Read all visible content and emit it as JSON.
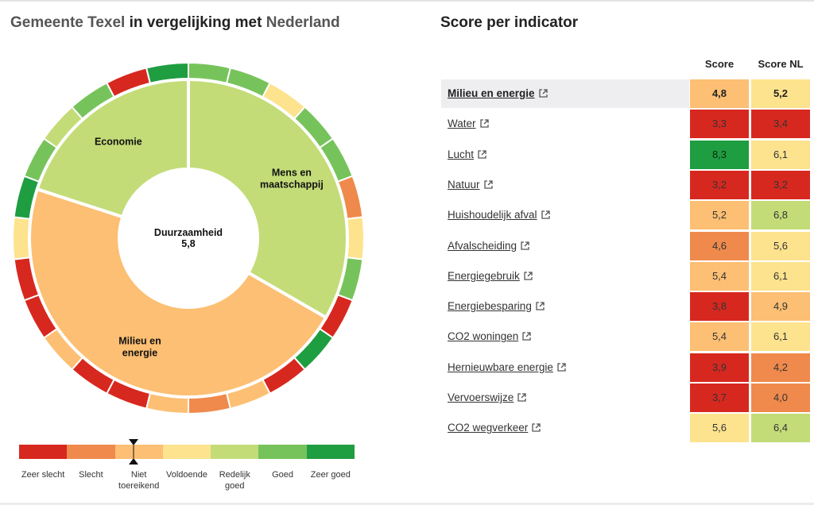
{
  "header": {
    "title_prefix": "Gemeente Texel",
    "title_middle": " in vergelijking met ",
    "title_suffix": "Nederland",
    "right_title": "Score per indicator"
  },
  "colors": {
    "zeer_slecht": "#d7281f",
    "slecht": "#ef8a4c",
    "niet_toereikend": "#fcbf73",
    "voldoende": "#fde38e",
    "redelijk_goed": "#c3dc78",
    "goed": "#77c35b",
    "zeer_goed": "#1f9d41"
  },
  "chart_data": {
    "type": "sunburst",
    "center": {
      "title": "Duurzaamheid",
      "value": "5,8"
    },
    "inner": [
      {
        "name": "Mens en maatschappij",
        "color": "redelijk_goed",
        "lines": [
          "Mens en",
          "maatschappij"
        ]
      },
      {
        "name": "Milieu en energie",
        "color": "niet_toereikend",
        "lines": [
          "Milieu en",
          "energie"
        ],
        "value": "4,8"
      },
      {
        "name": "Economie",
        "color": "redelijk_goed",
        "lines": [
          "Economie"
        ]
      }
    ],
    "outer_colors": [
      "goed",
      "goed",
      "voldoende",
      "goed",
      "goed",
      "slecht",
      "voldoende",
      "goed",
      "zeer_slecht",
      "zeer_goed",
      "zeer_slecht",
      "niet_toereikend",
      "slecht",
      "niet_toereikend",
      "zeer_slecht",
      "zeer_slecht",
      "niet_toereikend",
      "zeer_slecht",
      "zeer_slecht",
      "voldoende",
      "zeer_goed",
      "goed",
      "redelijk_goed",
      "goed",
      "zeer_slecht",
      "zeer_goed"
    ]
  },
  "legend": {
    "labels": [
      "Zeer slecht",
      "Slecht",
      "Niet toereikend",
      "Voldoende",
      "Redelijk goed",
      "Goed",
      "Zeer goed"
    ],
    "marker_score": 4.8
  },
  "table": {
    "col_score": "Score",
    "col_score_nl": "Score NL",
    "rows": [
      {
        "label": "Milieu en energie",
        "score": "4,8",
        "score_nl": "5,2",
        "score_color": "niet_toereikend",
        "nl_color": "voldoende",
        "bold": true
      },
      {
        "label": "Water",
        "score": "3,3",
        "score_nl": "3,4",
        "score_color": "zeer_slecht",
        "nl_color": "zeer_slecht"
      },
      {
        "label": "Lucht",
        "score": "8,3",
        "score_nl": "6,1",
        "score_color": "zeer_goed",
        "nl_color": "voldoende"
      },
      {
        "label": "Natuur",
        "score": "3,2",
        "score_nl": "3,2",
        "score_color": "zeer_slecht",
        "nl_color": "zeer_slecht"
      },
      {
        "label": "Huishoudelijk afval",
        "score": "5,2",
        "score_nl": "6,8",
        "score_color": "niet_toereikend",
        "nl_color": "redelijk_goed"
      },
      {
        "label": "Afvalscheiding",
        "score": "4,6",
        "score_nl": "5,6",
        "score_color": "slecht",
        "nl_color": "voldoende"
      },
      {
        "label": "Energiegebruik",
        "score": "5,4",
        "score_nl": "6,1",
        "score_color": "niet_toereikend",
        "nl_color": "voldoende"
      },
      {
        "label": "Energiebesparing",
        "score": "3,8",
        "score_nl": "4,9",
        "score_color": "zeer_slecht",
        "nl_color": "niet_toereikend"
      },
      {
        "label": "CO2 woningen",
        "score": "5,4",
        "score_nl": "6,1",
        "score_color": "niet_toereikend",
        "nl_color": "voldoende"
      },
      {
        "label": "Hernieuwbare energie",
        "score": "3,9",
        "score_nl": "4,2",
        "score_color": "zeer_slecht",
        "nl_color": "slecht"
      },
      {
        "label": "Vervoerswijze",
        "score": "3,7",
        "score_nl": "4,0",
        "score_color": "zeer_slecht",
        "nl_color": "slecht"
      },
      {
        "label": "CO2 wegverkeer",
        "score": "5,6",
        "score_nl": "6,4",
        "score_color": "voldoende",
        "nl_color": "redelijk_goed"
      }
    ]
  }
}
